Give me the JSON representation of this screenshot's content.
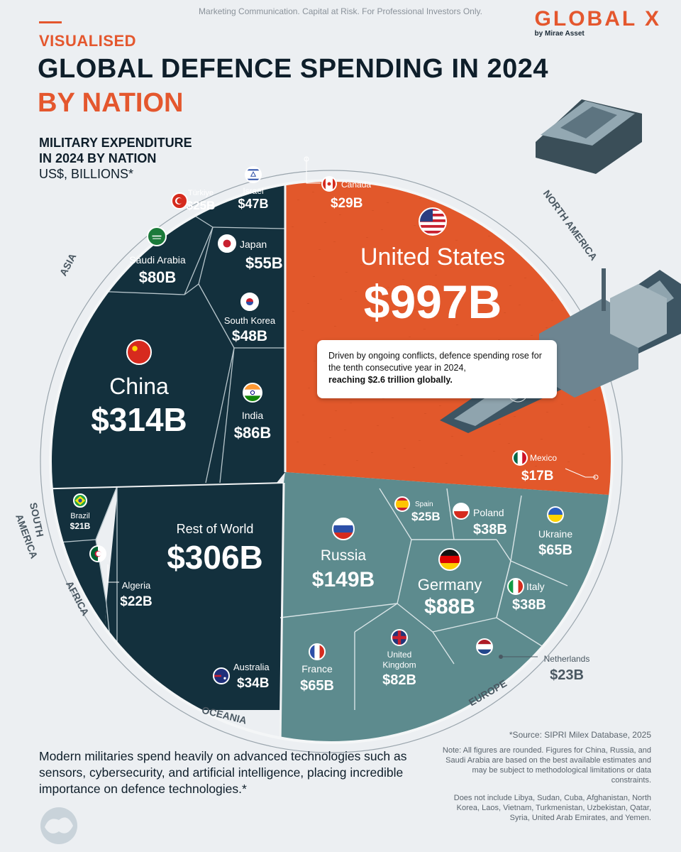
{
  "header": {
    "disclaimer": "Marketing Communication. Capital at Risk. For Professional Investors Only.",
    "logo": "GLOBAL X",
    "logo_sub": "by Mirae Asset",
    "kicker": "VISUALISED",
    "title": "GLOBAL DEFENCE SPENDING IN 2024",
    "subtitle": "BY NATION",
    "measure_line1": "MILITARY EXPENDITURE",
    "measure_line2": "IN 2024 BY NATION",
    "measure_unit": "US$, BILLIONS*"
  },
  "callout": {
    "line1": "Driven by ongoing conflicts, defence spending rose for the tenth consecutive year in 2024,",
    "line2": "reaching $2.6 trillion globally."
  },
  "footer": {
    "text": "Modern militaries spend heavily on advanced technologies such as sensors, cybersecurity, and artificial intelligence, placing incredible importance on defence technologies.*",
    "source": "*Source: SIPRI Milex Database, 2025",
    "note1": "Note: All figures are rounded. Figures for China, Russia, and Saudi Arabia are based on the best available estimates and may be subject to methodological limitations or data constraints.",
    "note2": "Does not include Libya, Sudan, Cuba, Afghanistan, North Korea, Laos, Vietnam, Turkmenistan, Uzbekistan, Qatar, Syria, United Arab Emirates, and Yemen."
  },
  "colors": {
    "north_america": "#e2582b",
    "asia": "#13303d",
    "europe": "#5d8b8e",
    "accent": "#e4572e"
  },
  "chart_data": {
    "type": "voronoi treemap",
    "unit": "US$, billions",
    "regions": [
      {
        "name": "NORTH AMERICA",
        "items": [
          {
            "label": "United States",
            "value": 997,
            "text": "$997B",
            "flag": "us-flag"
          },
          {
            "label": "Canada",
            "value": 29,
            "text": "$29B",
            "flag": "canada-flag"
          },
          {
            "label": "Mexico",
            "value": 17,
            "text": "$17B",
            "flag": "mexico-flag"
          }
        ]
      },
      {
        "name": "ASIA",
        "items": [
          {
            "label": "China",
            "value": 314,
            "text": "$314B",
            "flag": "china-flag"
          },
          {
            "label": "India",
            "value": 86,
            "text": "$86B",
            "flag": "india-flag"
          },
          {
            "label": "Saudi Arabia",
            "value": 80,
            "text": "$80B",
            "flag": "saudi-flag"
          },
          {
            "label": "Japan",
            "value": 55,
            "text": "$55B",
            "flag": "japan-flag"
          },
          {
            "label": "South Korea",
            "value": 48,
            "text": "$48B",
            "flag": "korea-flag"
          },
          {
            "label": "Israel",
            "value": 47,
            "text": "$47B",
            "flag": "israel-flag"
          },
          {
            "label": "Türkiye",
            "value": 25,
            "text": "$25B",
            "flag": "turkiye-flag"
          }
        ]
      },
      {
        "name": "EUROPE",
        "items": [
          {
            "label": "Russia",
            "value": 149,
            "text": "$149B",
            "flag": "russia-flag"
          },
          {
            "label": "Germany",
            "value": 88,
            "text": "$88B",
            "flag": "germany-flag"
          },
          {
            "label": "United Kingdom",
            "value": 82,
            "text": "$82B",
            "flag": "uk-flag"
          },
          {
            "label": "France",
            "value": 65,
            "text": "$65B",
            "flag": "france-flag"
          },
          {
            "label": "Ukraine",
            "value": 65,
            "text": "$65B",
            "flag": "ukraine-flag"
          },
          {
            "label": "Poland",
            "value": 38,
            "text": "$38B",
            "flag": "poland-flag"
          },
          {
            "label": "Italy",
            "value": 38,
            "text": "$38B",
            "flag": "italy-flag"
          },
          {
            "label": "Spain",
            "value": 25,
            "text": "$25B",
            "flag": "spain-flag"
          },
          {
            "label": "Netherlands",
            "value": 23,
            "text": "$23B",
            "flag": "netherlands-flag"
          }
        ]
      },
      {
        "name": "SOUTH AMERICA",
        "items": [
          {
            "label": "Brazil",
            "value": 21,
            "text": "$21B",
            "flag": "brazil-flag"
          }
        ]
      },
      {
        "name": "AFRICA",
        "items": [
          {
            "label": "Algeria",
            "value": 22,
            "text": "$22B",
            "flag": "algeria-flag"
          }
        ]
      },
      {
        "name": "OCEANIA",
        "items": [
          {
            "label": "Australia",
            "value": 34,
            "text": "$34B",
            "flag": "australia-flag"
          }
        ]
      },
      {
        "name": "",
        "items": [
          {
            "label": "Rest of World",
            "value": 306,
            "text": "$306B"
          }
        ]
      }
    ]
  }
}
